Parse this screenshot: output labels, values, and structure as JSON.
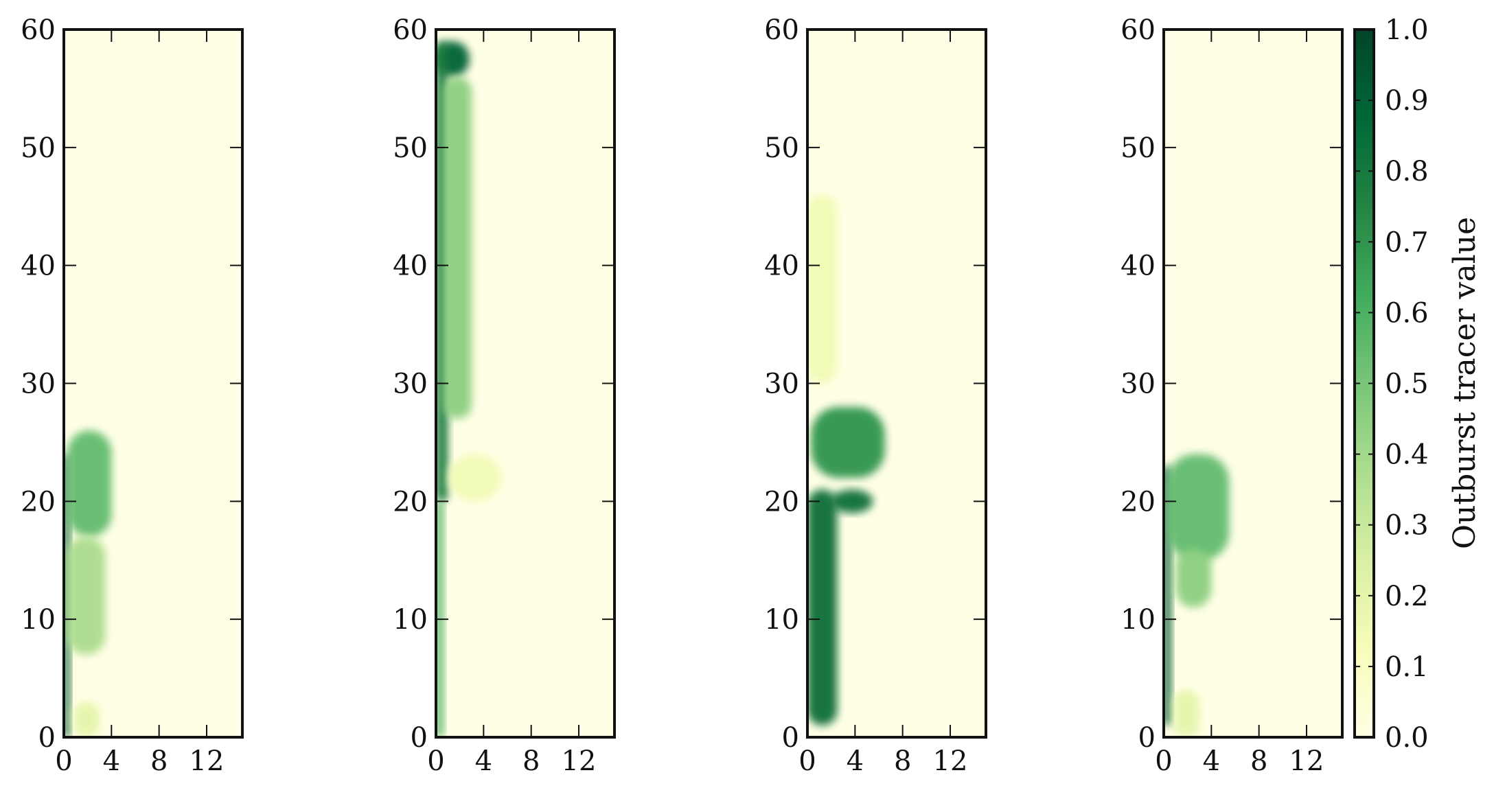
{
  "figure": {
    "colormap": [
      "#ffffe5",
      "#f7fcb9",
      "#d9f0a3",
      "#addd8e",
      "#78c679",
      "#41ab5d",
      "#238443",
      "#006837",
      "#004529"
    ]
  },
  "chart_data": [
    {
      "type": "heatmap",
      "panel": 1,
      "xlim": [
        0,
        15
      ],
      "ylim": [
        0,
        60
      ],
      "xticks": [
        "0",
        "4",
        "8",
        "12"
      ],
      "yticks": [
        "0",
        "10",
        "20",
        "30",
        "40",
        "50",
        "60"
      ],
      "features": [
        {
          "x": [
            0.0,
            0.5
          ],
          "y": [
            0,
            24
          ],
          "value": 0.92
        },
        {
          "x": [
            0.3,
            4.0
          ],
          "y": [
            17,
            26
          ],
          "value": 0.55
        },
        {
          "x": [
            0.2,
            3.5
          ],
          "y": [
            7,
            17
          ],
          "value": 0.38
        },
        {
          "x": [
            0.8,
            3.0
          ],
          "y": [
            0,
            3
          ],
          "value": 0.2
        }
      ]
    },
    {
      "type": "heatmap",
      "panel": 2,
      "xlim": [
        0,
        15
      ],
      "ylim": [
        0,
        60
      ],
      "xticks": [
        "0",
        "4",
        "8",
        "12"
      ],
      "yticks": [
        "0",
        "10",
        "20",
        "30",
        "40",
        "50",
        "60"
      ],
      "features": [
        {
          "x": [
            0.0,
            2.8
          ],
          "y": [
            56,
            59
          ],
          "value": 0.9
        },
        {
          "x": [
            0.0,
            1.0
          ],
          "y": [
            20,
            59
          ],
          "value": 0.8
        },
        {
          "x": [
            0.6,
            3.0
          ],
          "y": [
            27,
            56
          ],
          "value": 0.45
        },
        {
          "x": [
            1.0,
            5.5
          ],
          "y": [
            20,
            24
          ],
          "value": 0.15
        },
        {
          "x": [
            0.0,
            0.6
          ],
          "y": [
            0,
            20
          ],
          "value": 0.6
        }
      ]
    },
    {
      "type": "heatmap",
      "panel": 3,
      "xlim": [
        0,
        15
      ],
      "ylim": [
        0,
        60
      ],
      "xticks": [
        "0",
        "4",
        "8",
        "12"
      ],
      "yticks": [
        "0",
        "10",
        "20",
        "30",
        "40",
        "50",
        "60"
      ],
      "features": [
        {
          "x": [
            0.0,
            2.5
          ],
          "y": [
            30,
            46
          ],
          "value": 0.15
        },
        {
          "x": [
            0.3,
            6.5
          ],
          "y": [
            22,
            28
          ],
          "value": 0.7
        },
        {
          "x": [
            2.0,
            5.5
          ],
          "y": [
            19,
            21
          ],
          "value": 0.85
        },
        {
          "x": [
            0.0,
            2.5
          ],
          "y": [
            1,
            21
          ],
          "value": 0.85
        }
      ]
    },
    {
      "type": "heatmap",
      "panel": 4,
      "xlim": [
        0,
        15
      ],
      "ylim": [
        0,
        60
      ],
      "xticks": [
        "0",
        "4",
        "8",
        "12"
      ],
      "yticks": [
        "0",
        "10",
        "20",
        "30",
        "40",
        "50",
        "60"
      ],
      "features": [
        {
          "x": [
            0.0,
            0.6
          ],
          "y": [
            1,
            23
          ],
          "value": 0.92
        },
        {
          "x": [
            0.3,
            5.5
          ],
          "y": [
            15,
            24
          ],
          "value": 0.55
        },
        {
          "x": [
            1.0,
            4.0
          ],
          "y": [
            11,
            16
          ],
          "value": 0.45
        },
        {
          "x": [
            0.8,
            3.0
          ],
          "y": [
            0,
            4
          ],
          "value": 0.2
        }
      ]
    }
  ],
  "colorbar": {
    "label": "Outburst tracer value",
    "range": [
      0.0,
      1.0
    ],
    "ticks": [
      "0.0",
      "0.1",
      "0.2",
      "0.3",
      "0.4",
      "0.5",
      "0.6",
      "0.7",
      "0.8",
      "0.9",
      "1.0"
    ]
  }
}
